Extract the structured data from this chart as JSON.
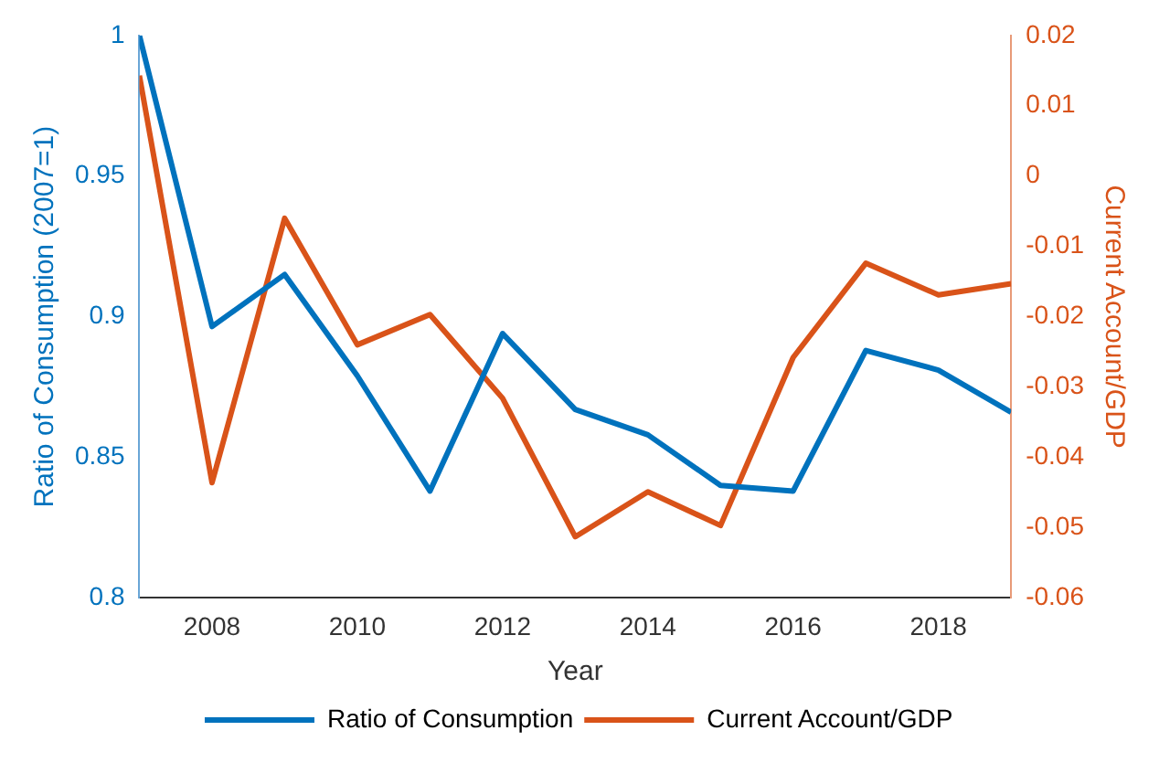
{
  "chart_data": {
    "type": "line",
    "xlabel": "Year",
    "ylabel": "Ratio of Consumption (2007=1)",
    "y2label": "Current Account/GDP",
    "x": [
      2007,
      2008,
      2009,
      2010,
      2011,
      2012,
      2013,
      2014,
      2015,
      2016,
      2017,
      2018,
      2019
    ],
    "series": [
      {
        "name": "Ratio of Consumption",
        "color": "#0072bd",
        "values": [
          1.0,
          0.8965,
          0.915,
          0.879,
          0.838,
          0.894,
          0.867,
          0.858,
          0.84,
          0.838,
          0.888,
          0.881,
          0.866
        ]
      },
      {
        "name": "Current Account/GDP",
        "color": "#d95319",
        "axis": "y2",
        "values": [
          0.0143,
          -0.0436,
          -0.006,
          -0.024,
          -0.0197,
          -0.0316,
          -0.0513,
          -0.0449,
          -0.0497,
          -0.0258,
          -0.0124,
          -0.0169,
          -0.0153
        ]
      }
    ],
    "xlim": [
      2007,
      2019
    ],
    "xticks": [
      2008,
      2010,
      2012,
      2014,
      2016,
      2018
    ],
    "ylim": [
      0.8,
      1
    ],
    "yticks": [
      0.8,
      0.85,
      0.9,
      0.95,
      1
    ],
    "y2lim": [
      -0.06,
      0.02
    ],
    "y2ticks": [
      -0.06,
      -0.05,
      -0.04,
      -0.03,
      -0.02,
      -0.01,
      0,
      0.01,
      0.02
    ],
    "grid": false,
    "legend": "bottom",
    "marker": "none",
    "line_style": "solid"
  }
}
